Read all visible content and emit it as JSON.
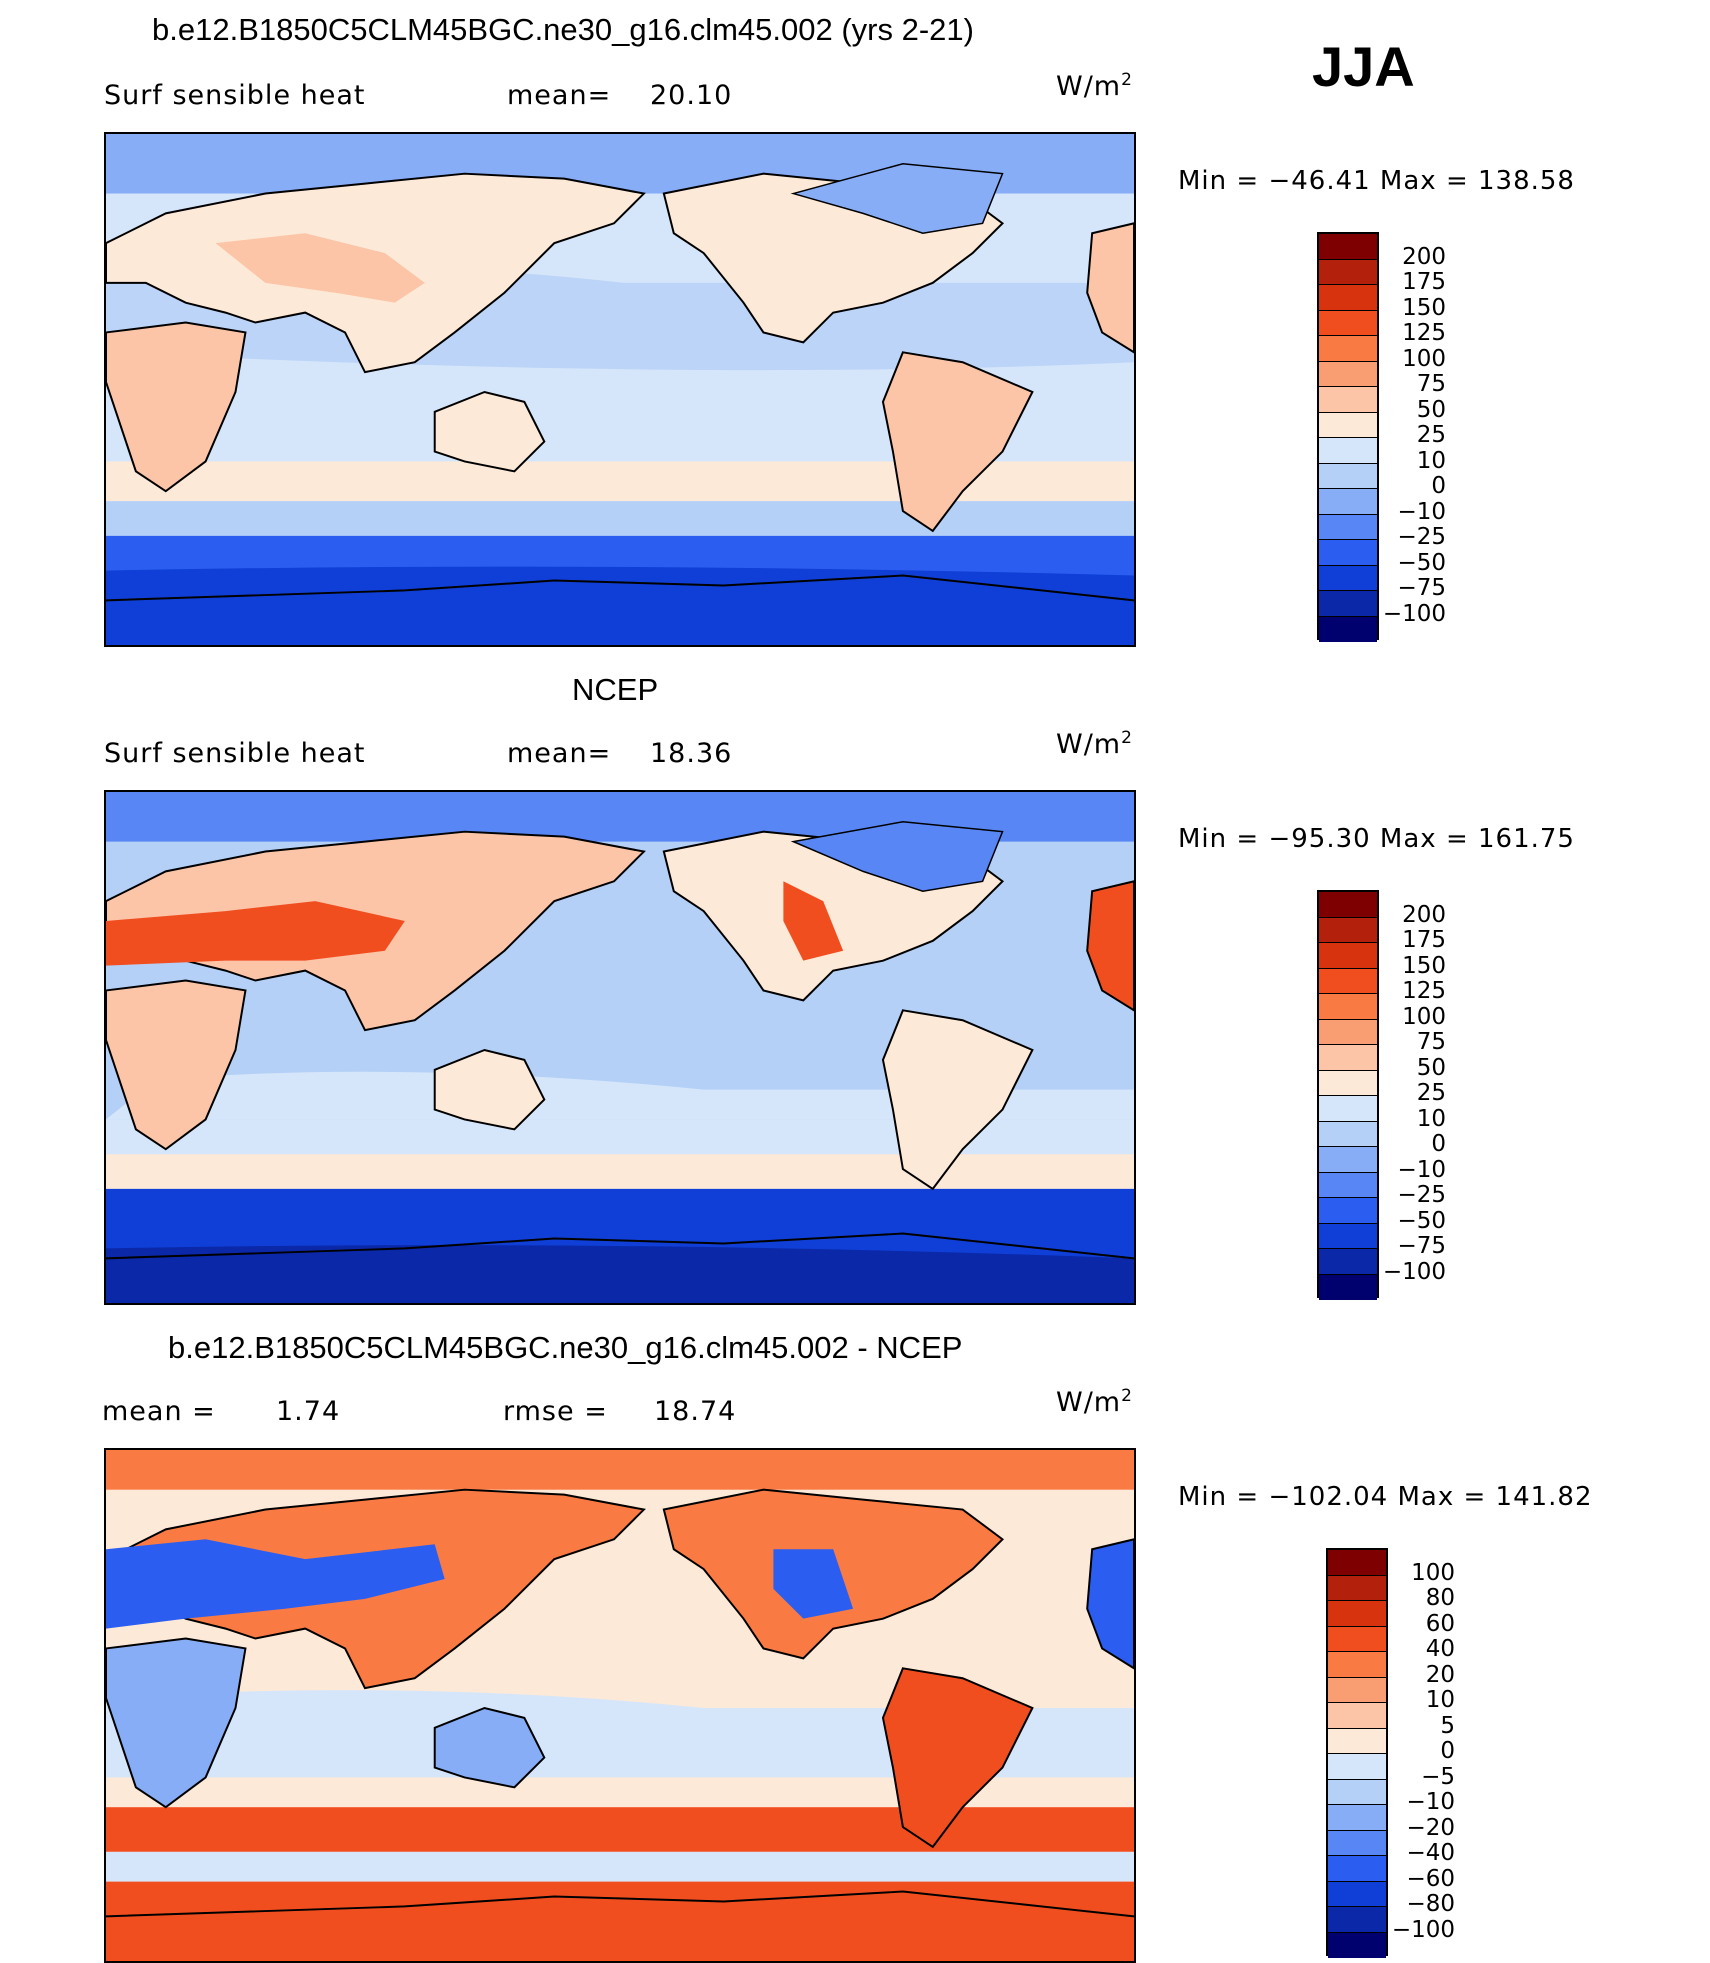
{
  "season": "JJA",
  "panels": [
    {
      "title": "b.e12.B1850C5CLM45BGC.ne30_g16.clm45.002 (yrs 2-21)",
      "left_label": "Surf  sensible  heat",
      "stat_label": "mean=",
      "stat_value": "20.10",
      "unit": "W/m",
      "unit_sup": "2",
      "minmax": "Min  =  −46.41  Max  =  138.58",
      "colorbar_labels": [
        "200",
        "175",
        "150",
        "125",
        "100",
        "75",
        "50",
        "25",
        "10",
        "0",
        "−10",
        "−25",
        "−50",
        "−75",
        "−100"
      ]
    },
    {
      "title": "NCEP",
      "left_label": "Surf  sensible  heat",
      "stat_label": "mean=",
      "stat_value": "18.36",
      "unit": "W/m",
      "unit_sup": "2",
      "minmax": "Min  =  −95.30  Max  =  161.75",
      "colorbar_labels": [
        "200",
        "175",
        "150",
        "125",
        "100",
        "75",
        "50",
        "25",
        "10",
        "0",
        "−10",
        "−25",
        "−50",
        "−75",
        "−100"
      ]
    },
    {
      "title": "b.e12.B1850C5CLM45BGC.ne30_g16.clm45.002 - NCEP",
      "left_label": "mean  =",
      "left_value": "1.74",
      "stat_label": "rmse  =",
      "stat_value": "18.74",
      "unit": "W/m",
      "unit_sup": "2",
      "minmax": "Min  =  −102.04  Max  =  141.82",
      "colorbar_labels": [
        "100",
        "80",
        "60",
        "40",
        "20",
        "10",
        "5",
        "0",
        "−5",
        "−10",
        "−20",
        "−40",
        "−60",
        "−80",
        "−100"
      ]
    }
  ],
  "colors": {
    "palette": [
      "#7f0000",
      "#b3200b",
      "#d8330f",
      "#f14e20",
      "#fa7a43",
      "#f99d72",
      "#fcc5a8",
      "#fde9d8",
      "#d6e6fa",
      "#b4d0f7",
      "#86adf5",
      "#5887f5",
      "#2b5ef0",
      "#0f3fd6",
      "#0a28a8",
      "#00006e"
    ],
    "ocean_model": "#d6e6fa",
    "ocean_ncep": "#b4d0f7",
    "ocean_diff": "#fde9d8",
    "coast": "#000000"
  }
}
